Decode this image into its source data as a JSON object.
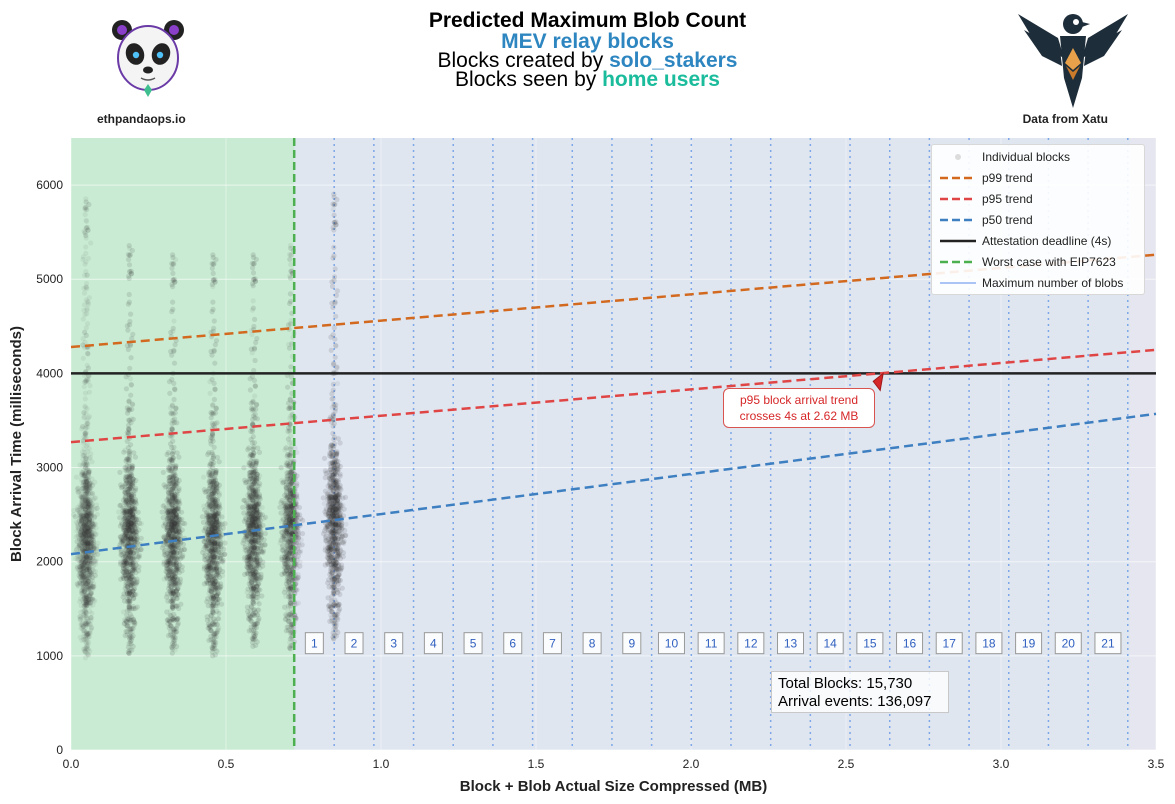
{
  "header": {
    "title": "Predicted Maximum Blob Count",
    "line1": "MEV relay blocks",
    "line2_prefix": "Blocks created by ",
    "line2_highlight": "solo_stakers",
    "line3_prefix": "Blocks seen by ",
    "line3_highlight": "home users"
  },
  "logos": {
    "left_label": "ethpandaops.io",
    "left_icon": "panda-logo-icon",
    "right_label": "Data from Xatu",
    "right_icon": "bird-logo-icon"
  },
  "stats": {
    "total_blocks": "Total Blocks: 15,730",
    "arrival_events": "Arrival events: 136,097"
  },
  "annotation": {
    "line1": "p95 block arrival trend",
    "line2": "crosses 4s at 2.62 MB",
    "point": [
      2.62,
      4000
    ]
  },
  "legend": {
    "items": [
      {
        "label": "Individual blocks",
        "color": "#999999",
        "style": "marker"
      },
      {
        "label": "p99 trend",
        "color": "#d2691e",
        "style": "dashed"
      },
      {
        "label": "p95 trend",
        "color": "#e04545",
        "style": "dashed"
      },
      {
        "label": "p50 trend",
        "color": "#3d7fc1",
        "style": "dashed"
      },
      {
        "label": "Attestation deadline (4s)",
        "color": "#222222",
        "style": "solid"
      },
      {
        "label": "Worst case with EIP7623",
        "color": "#4caf50",
        "style": "dashed"
      },
      {
        "label": "Maximum number of blobs",
        "color": "#a9c4f5",
        "style": "solid"
      }
    ]
  },
  "colors": {
    "plot_bg": "#dfe6f0",
    "green_region": "#c9ebd3",
    "scatter": "#3a3a3a",
    "blob_line": "#7da7e8",
    "blob_label": "#3060c0"
  },
  "chart_data": {
    "type": "scatter",
    "xlabel": "Block + Blob Actual Size Compressed (MB)",
    "ylabel": "Block Arrival Time (milliseconds)",
    "xlim": [
      0,
      3.5
    ],
    "ylim": [
      0,
      6500
    ],
    "xticks": [
      "0.0",
      "0.5",
      "1.0",
      "1.5",
      "2.0",
      "2.5",
      "3.0",
      "3.5"
    ],
    "xtick_values": [
      0,
      0.5,
      1.0,
      1.5,
      2.0,
      2.5,
      3.0,
      3.5
    ],
    "yticks": [
      "0",
      "1000",
      "2000",
      "3000",
      "4000",
      "5000",
      "6000"
    ],
    "ytick_values": [
      0,
      1000,
      2000,
      3000,
      4000,
      5000,
      6000
    ],
    "grid": true,
    "legend_position": "top-right",
    "trends": [
      {
        "name": "p99 trend",
        "x": [
          0,
          3.5
        ],
        "y": [
          4280,
          5260
        ]
      },
      {
        "name": "p95 trend",
        "x": [
          0,
          3.5
        ],
        "y": [
          3270,
          4250
        ]
      },
      {
        "name": "p50 trend",
        "x": [
          0,
          3.5
        ],
        "y": [
          2080,
          3570
        ]
      }
    ],
    "attestation_deadline": 4000,
    "worst_case_eip7623_x": 0.72,
    "max_blob_lines": [
      0.849,
      0.977,
      1.105,
      1.233,
      1.361,
      1.489,
      1.617,
      1.745,
      1.873,
      2.001,
      2.129,
      2.257,
      2.385,
      2.513,
      2.641,
      2.769,
      2.897,
      3.025,
      3.153,
      3.281,
      3.409
    ],
    "blob_labels": [
      "1",
      "2",
      "3",
      "4",
      "5",
      "6",
      "7",
      "8",
      "9",
      "10",
      "11",
      "12",
      "13",
      "14",
      "15",
      "16",
      "17",
      "18",
      "19",
      "20",
      "21"
    ],
    "blob_label_x": [
      0.785,
      0.913,
      1.041,
      1.169,
      1.297,
      1.425,
      1.553,
      1.681,
      1.809,
      1.937,
      2.065,
      2.193,
      2.321,
      2.449,
      2.577,
      2.705,
      2.833,
      2.961,
      3.089,
      3.217,
      3.345
    ],
    "blob_label_y": 1140,
    "clusters": [
      {
        "x": 0.05,
        "y_center": 2200,
        "y_min": 950,
        "y_max": 5900,
        "n": 5000
      },
      {
        "x": 0.19,
        "y_center": 2250,
        "y_min": 950,
        "y_max": 5400,
        "n": 2500
      },
      {
        "x": 0.33,
        "y_center": 2250,
        "y_min": 1000,
        "y_max": 5300,
        "n": 2000
      },
      {
        "x": 0.46,
        "y_center": 2200,
        "y_min": 1000,
        "y_max": 5300,
        "n": 1800
      },
      {
        "x": 0.59,
        "y_center": 2300,
        "y_min": 1100,
        "y_max": 5300,
        "n": 1600
      },
      {
        "x": 0.71,
        "y_center": 2300,
        "y_min": 1000,
        "y_max": 5400,
        "n": 1300
      },
      {
        "x": 0.85,
        "y_center": 2400,
        "y_min": 1100,
        "y_max": 5950,
        "n": 1600
      }
    ]
  }
}
